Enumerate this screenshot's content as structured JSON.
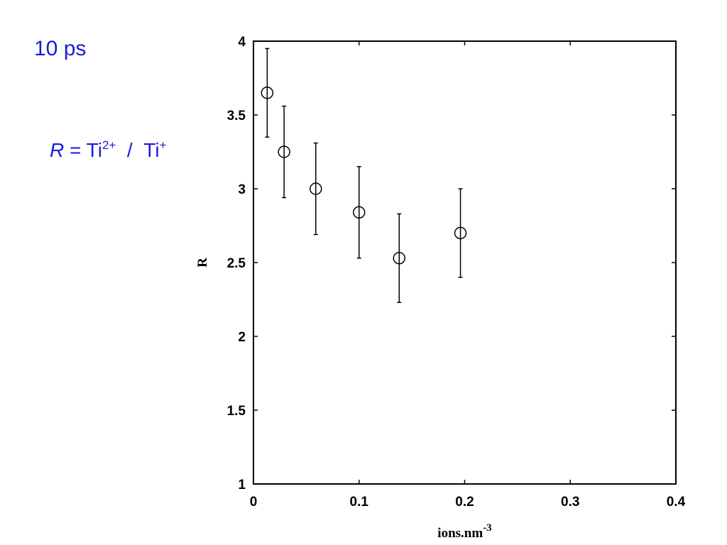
{
  "annotations": {
    "time_label": "10 ps",
    "ratio_symbol": "R",
    "equals": "=",
    "numerator_base": "Ti",
    "numerator_charge": "2+",
    "slash": "/",
    "denominator_base": "Ti",
    "denominator_charge": "+",
    "color": "#1a1adc"
  },
  "chart_data": {
    "type": "scatter",
    "xlabel": "ions.nm",
    "xlabel_superscript": "-3",
    "ylabel": "R",
    "xlim": [
      0,
      0.4
    ],
    "ylim": [
      1,
      4
    ],
    "x_ticks": [
      0,
      0.1,
      0.2,
      0.3,
      0.4
    ],
    "x_tick_labels": [
      "0",
      "0.1",
      "0.2",
      "0.3",
      "0.4"
    ],
    "y_ticks": [
      1,
      1.5,
      2,
      2.5,
      3,
      3.5,
      4
    ],
    "y_tick_labels": [
      "1",
      "1.5",
      "2",
      "2.5",
      "3",
      "3.5",
      "4"
    ],
    "grid": false,
    "marker": "open-circle",
    "series": [
      {
        "x": [
          0.013,
          0.029,
          0.059,
          0.1,
          0.138,
          0.196
        ],
        "y": [
          3.65,
          3.25,
          3.0,
          2.84,
          2.53,
          2.7
        ],
        "y_err": [
          0.3,
          0.31,
          0.31,
          0.31,
          0.3,
          0.3
        ]
      }
    ]
  }
}
